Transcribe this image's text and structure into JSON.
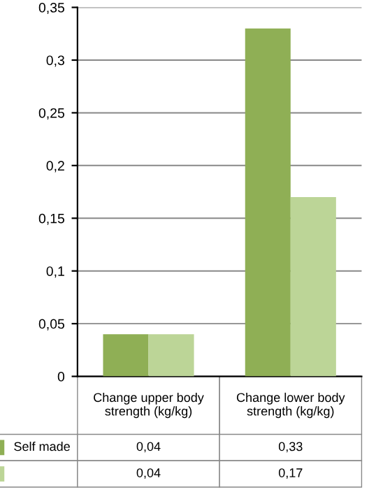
{
  "chart_data": {
    "type": "bar",
    "categories": [
      "Change upper body strength (kg/kg)",
      "Change lower body strength (kg/kg)"
    ],
    "series": [
      {
        "name": "Self made",
        "color": "#8faf55",
        "values": [
          0.04,
          0.33
        ],
        "value_labels": [
          "0,04",
          "0,33"
        ]
      },
      {
        "color": "#bcd597",
        "values": [
          0.04,
          0.17
        ],
        "value_labels": [
          "0,04",
          "0,17"
        ]
      }
    ],
    "ylim": [
      0,
      0.35
    ],
    "yticks": [
      0,
      {
        "value": 0.05,
        "label": "0,05"
      },
      {
        "value": 0.1,
        "label": "0,1"
      },
      {
        "value": 0.15,
        "label": "0,15"
      },
      {
        "value": 0.2,
        "label": "0,2"
      },
      {
        "value": 0.25,
        "label": "0,25"
      },
      {
        "value": 0.3,
        "label": "0,3"
      },
      {
        "value": 0.35,
        "label": "0,35"
      }
    ],
    "grid": "y"
  }
}
